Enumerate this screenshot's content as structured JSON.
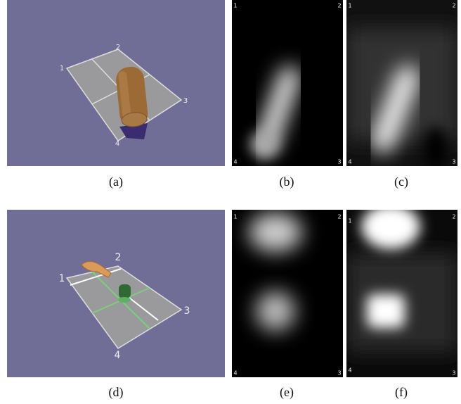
{
  "figure": {
    "panels": [
      {
        "caption": "(a)",
        "corners": [
          "1",
          "2",
          "3",
          "4"
        ]
      },
      {
        "caption": "(b)",
        "corners": [
          "1",
          "2",
          "3",
          "4"
        ]
      },
      {
        "caption": "(c)",
        "corners": [
          "1",
          "2",
          "3",
          "4"
        ]
      },
      {
        "caption": "(d)",
        "corners": [
          "1",
          "2",
          "3",
          "4"
        ]
      },
      {
        "caption": "(e)",
        "corners": [
          "1",
          "2",
          "3",
          "4"
        ]
      },
      {
        "caption": "(f)",
        "corners": [
          "1",
          "2",
          "3",
          "4"
        ]
      }
    ]
  }
}
